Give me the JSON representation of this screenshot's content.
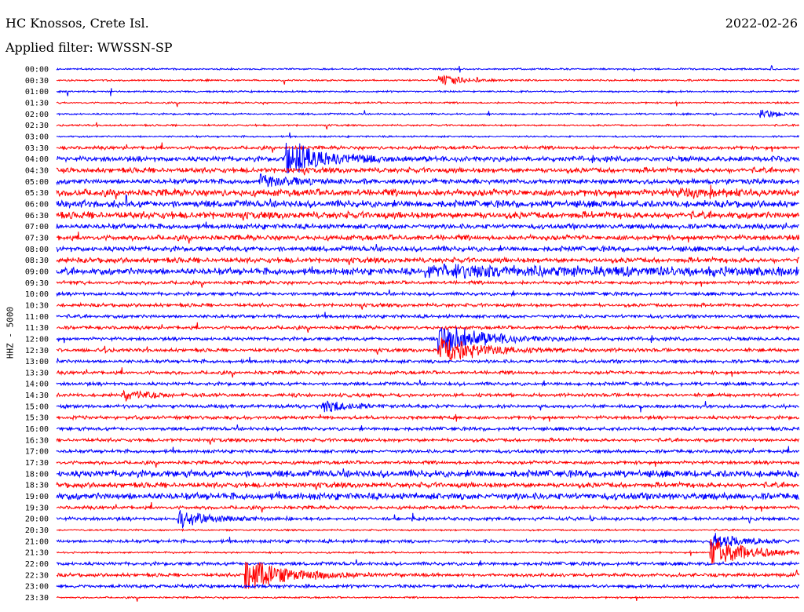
{
  "header": {
    "station": "HC Knossos, Crete Isl.",
    "date": "2022-02-26",
    "filter": "Applied filter: WWSSN-SP"
  },
  "chart_data": {
    "type": "line",
    "title": "HC Knossos, Crete Isl.",
    "ylabel": "HHZ - 5000",
    "trace_colors": [
      "#0000ff",
      "#ff0000"
    ],
    "line_labels": [
      "00:00",
      "00:30",
      "01:00",
      "01:30",
      "02:00",
      "02:30",
      "03:00",
      "03:30",
      "04:00",
      "04:30",
      "05:00",
      "05:30",
      "06:00",
      "06:30",
      "07:00",
      "07:30",
      "08:00",
      "08:30",
      "09:00",
      "09:30",
      "10:00",
      "10:30",
      "11:00",
      "11:30",
      "12:00",
      "12:30",
      "13:00",
      "13:30",
      "14:00",
      "14:30",
      "15:00",
      "15:30",
      "16:00",
      "16:30",
      "17:00",
      "17:30",
      "18:00",
      "18:30",
      "19:00",
      "19:30",
      "20:00",
      "20:30",
      "21:00",
      "21:30",
      "22:00",
      "22:30",
      "23:00",
      "23:30"
    ],
    "noise_level": [
      1,
      1,
      1,
      1,
      1,
      1,
      1,
      2,
      3,
      3,
      3,
      4,
      4,
      4,
      3,
      3,
      3,
      3,
      4,
      2,
      2,
      2,
      2,
      2,
      2,
      2,
      2,
      2,
      2,
      2,
      2,
      2,
      2,
      2,
      2,
      2,
      4,
      3,
      4,
      2,
      2,
      1,
      2,
      1,
      2,
      2,
      2,
      1
    ],
    "events": [
      {
        "line": 1,
        "minute": 15.5,
        "amp": 9,
        "dur": 0.8
      },
      {
        "line": 4,
        "minute": 28.5,
        "amp": 7,
        "dur": 0.7
      },
      {
        "line": 8,
        "minute": 9.3,
        "amp": 24,
        "dur": 1.5
      },
      {
        "line": 10,
        "minute": 8.3,
        "amp": 8,
        "dur": 1.0
      },
      {
        "line": 11,
        "minute": 25,
        "amp": 3,
        "dur": 2
      },
      {
        "line": 18,
        "minute": 15,
        "amp": 6,
        "dur": 12
      },
      {
        "line": 24,
        "minute": 15.5,
        "amp": 26,
        "dur": 1.5
      },
      {
        "line": 25,
        "minute": 15.5,
        "amp": 22,
        "dur": 1.5
      },
      {
        "line": 29,
        "minute": 2.8,
        "amp": 6,
        "dur": 1.0
      },
      {
        "line": 30,
        "minute": 10.8,
        "amp": 9,
        "dur": 1.0
      },
      {
        "line": 40,
        "minute": 5.0,
        "amp": 14,
        "dur": 1.0
      },
      {
        "line": 42,
        "minute": 26.5,
        "amp": 10,
        "dur": 1.2
      },
      {
        "line": 43,
        "minute": 26.5,
        "amp": 22,
        "dur": 1.5
      },
      {
        "line": 45,
        "minute": 7.7,
        "amp": 24,
        "dur": 1.5
      }
    ]
  }
}
